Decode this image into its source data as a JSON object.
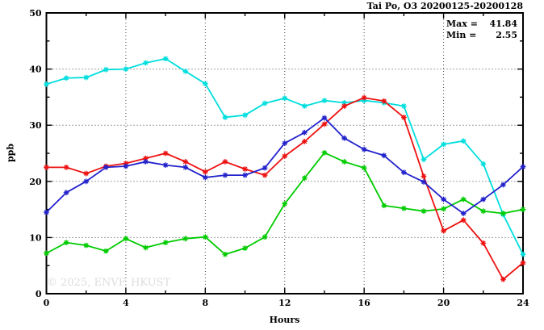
{
  "figure": {
    "title": "Tai Po, O3 20200125-20200128",
    "stats": {
      "max_label": "Max =",
      "max_value": "41.84",
      "min_label": "Min =",
      "min_value": "2.55"
    },
    "watermark": "© 2025, ENVF, HKUST"
  },
  "chart_data": {
    "type": "line",
    "title": "Tai Po, O3 20200125-20200128",
    "xlabel": "Hours",
    "ylabel": "ppb",
    "xlim": [
      0,
      24
    ],
    "ylim": [
      0,
      50
    ],
    "x_major_ticks": [
      0,
      4,
      8,
      12,
      16,
      20,
      24
    ],
    "x_minor_ticks": [
      2,
      6,
      10,
      14,
      18,
      22
    ],
    "y_major_ticks": [
      0,
      10,
      20,
      30,
      40,
      50
    ],
    "y_minor_ticks": [
      5,
      15,
      25,
      35,
      45
    ],
    "grid": "dotted lines at major ticks, mirrored inward ticks on all four sides",
    "legend_position": "none",
    "annotations": {
      "max": 41.84,
      "min": 2.55
    },
    "marker": "asterisk",
    "x": [
      0,
      1,
      2,
      3,
      4,
      5,
      6,
      7,
      8,
      9,
      10,
      11,
      12,
      13,
      14,
      15,
      16,
      17,
      18,
      19,
      20,
      21,
      22,
      23,
      24
    ],
    "series": [
      {
        "name": "cyan",
        "color": "#00DEDE",
        "values": [
          37.3,
          38.4,
          38.5,
          39.9,
          40.0,
          41.1,
          41.84,
          39.6,
          37.4,
          31.4,
          31.8,
          33.9,
          34.8,
          33.4,
          34.4,
          34.0,
          34.4,
          34.0,
          33.4,
          23.9,
          26.6,
          27.2,
          23.1,
          14.1,
          7.0
        ]
      },
      {
        "name": "green",
        "color": "#00CC00",
        "values": [
          7.2,
          9.1,
          8.6,
          7.6,
          9.8,
          8.2,
          9.1,
          9.8,
          10.1,
          7.0,
          8.1,
          10.1,
          16.0,
          20.6,
          25.1,
          23.5,
          22.4,
          15.7,
          15.2,
          14.7,
          15.1,
          16.8,
          14.7,
          14.3,
          15.0
        ]
      },
      {
        "name": "red",
        "color": "#EE1111",
        "values": [
          22.5,
          22.5,
          21.4,
          22.7,
          23.2,
          24.1,
          25.0,
          23.5,
          21.7,
          23.5,
          22.2,
          21.1,
          24.5,
          27.1,
          30.2,
          33.4,
          34.9,
          34.3,
          31.4,
          20.9,
          11.2,
          13.1,
          9.0,
          2.55,
          5.5
        ]
      },
      {
        "name": "blue",
        "color": "#2222CC",
        "values": [
          14.5,
          18.0,
          20.0,
          22.5,
          22.7,
          23.5,
          22.9,
          22.5,
          20.7,
          21.1,
          21.1,
          22.4,
          26.8,
          28.7,
          31.3,
          27.7,
          25.7,
          24.6,
          21.6,
          19.9,
          16.8,
          14.3,
          16.8,
          19.4,
          22.6
        ]
      }
    ]
  }
}
